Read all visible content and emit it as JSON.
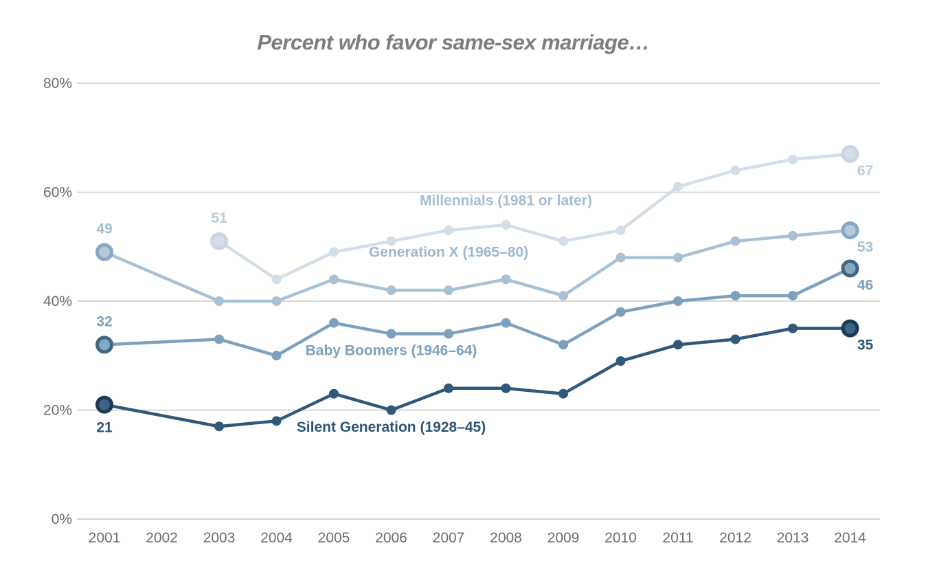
{
  "chart_data": {
    "type": "line",
    "title": "Percent who favor same-sex marriage…",
    "xlabel": "",
    "ylabel": "",
    "x": [
      2001,
      2002,
      2003,
      2004,
      2005,
      2006,
      2007,
      2008,
      2009,
      2010,
      2011,
      2012,
      2013,
      2014
    ],
    "ylim": [
      0,
      80
    ],
    "yticks": [
      {
        "value": 0,
        "label": "0%"
      },
      {
        "value": 20,
        "label": "20%"
      },
      {
        "value": 40,
        "label": "40%"
      },
      {
        "value": 60,
        "label": "60%"
      },
      {
        "value": 80,
        "label": "80%"
      }
    ],
    "grid": "horizontal",
    "legend_position": "inline-annotations",
    "axis_text_color": "#6b6b6b",
    "gridline_color": "#c9c9c9",
    "baseline_color": "#b9c9dd",
    "series": [
      {
        "name": "Millennials (1981 or later)",
        "values": [
          null,
          null,
          51,
          44,
          49,
          51,
          53,
          54,
          51,
          53,
          61,
          64,
          66,
          67
        ],
        "color": "#d4dee9",
        "label_color": "#a6bdd2",
        "value_label_color": "#bccddc",
        "endpoint_ring": "#c9d6e3",
        "endpoint_fill": "#d6dfe9",
        "annotation": {
          "text": "Millennials (1981 or later)",
          "x": 2008,
          "y": 58.5
        },
        "start_label": {
          "x": 2003,
          "value": 51,
          "position": "above"
        },
        "end_label": {
          "x": 2014,
          "value": 67,
          "position": "below-right"
        }
      },
      {
        "name": "Generation X (1965–80)",
        "values": [
          49,
          null,
          40,
          40,
          44,
          42,
          42,
          44,
          41,
          48,
          48,
          51,
          52,
          53
        ],
        "color": "#a9c1d5",
        "label_color": "#9db8cd",
        "value_label_color": "#a3bdd1",
        "endpoint_ring": "#84a8c5",
        "endpoint_fill": "#b6c9da",
        "annotation": {
          "text": "Generation X (1965–80)",
          "x": 2007,
          "y": 49
        },
        "start_label": {
          "x": 2001,
          "value": 49,
          "position": "above"
        },
        "end_label": {
          "x": 2014,
          "value": 53,
          "position": "below-right"
        }
      },
      {
        "name": "Baby Boomers (1946–64)",
        "values": [
          32,
          null,
          33,
          30,
          36,
          34,
          34,
          36,
          32,
          38,
          40,
          41,
          41,
          46
        ],
        "color": "#7da1bd",
        "label_color": "#7ca0bd",
        "value_label_color": "#7ca0bd",
        "endpoint_ring": "#3e6685",
        "endpoint_fill": "#87a8c1",
        "annotation": {
          "text": "Baby Boomers (1946–64)",
          "x": 2006,
          "y": 31
        },
        "start_label": {
          "x": 2001,
          "value": 32,
          "position": "above"
        },
        "end_label": {
          "x": 2014,
          "value": 46,
          "position": "below-right"
        }
      },
      {
        "name": "Silent Generation (1928–45)",
        "values": [
          21,
          null,
          17,
          18,
          23,
          20,
          24,
          24,
          23,
          29,
          32,
          33,
          35,
          35
        ],
        "color": "#2f587a",
        "label_color": "#2e5576",
        "value_label_color": "#2e5576",
        "endpoint_ring": "#1b3a52",
        "endpoint_fill": "#3a6387",
        "annotation": {
          "text": "Silent Generation (1928–45)",
          "x": 2006,
          "y": 16.9
        },
        "start_label": {
          "x": 2001,
          "value": 21,
          "position": "below"
        },
        "end_label": {
          "x": 2014,
          "value": 35,
          "position": "below-right"
        }
      }
    ]
  }
}
